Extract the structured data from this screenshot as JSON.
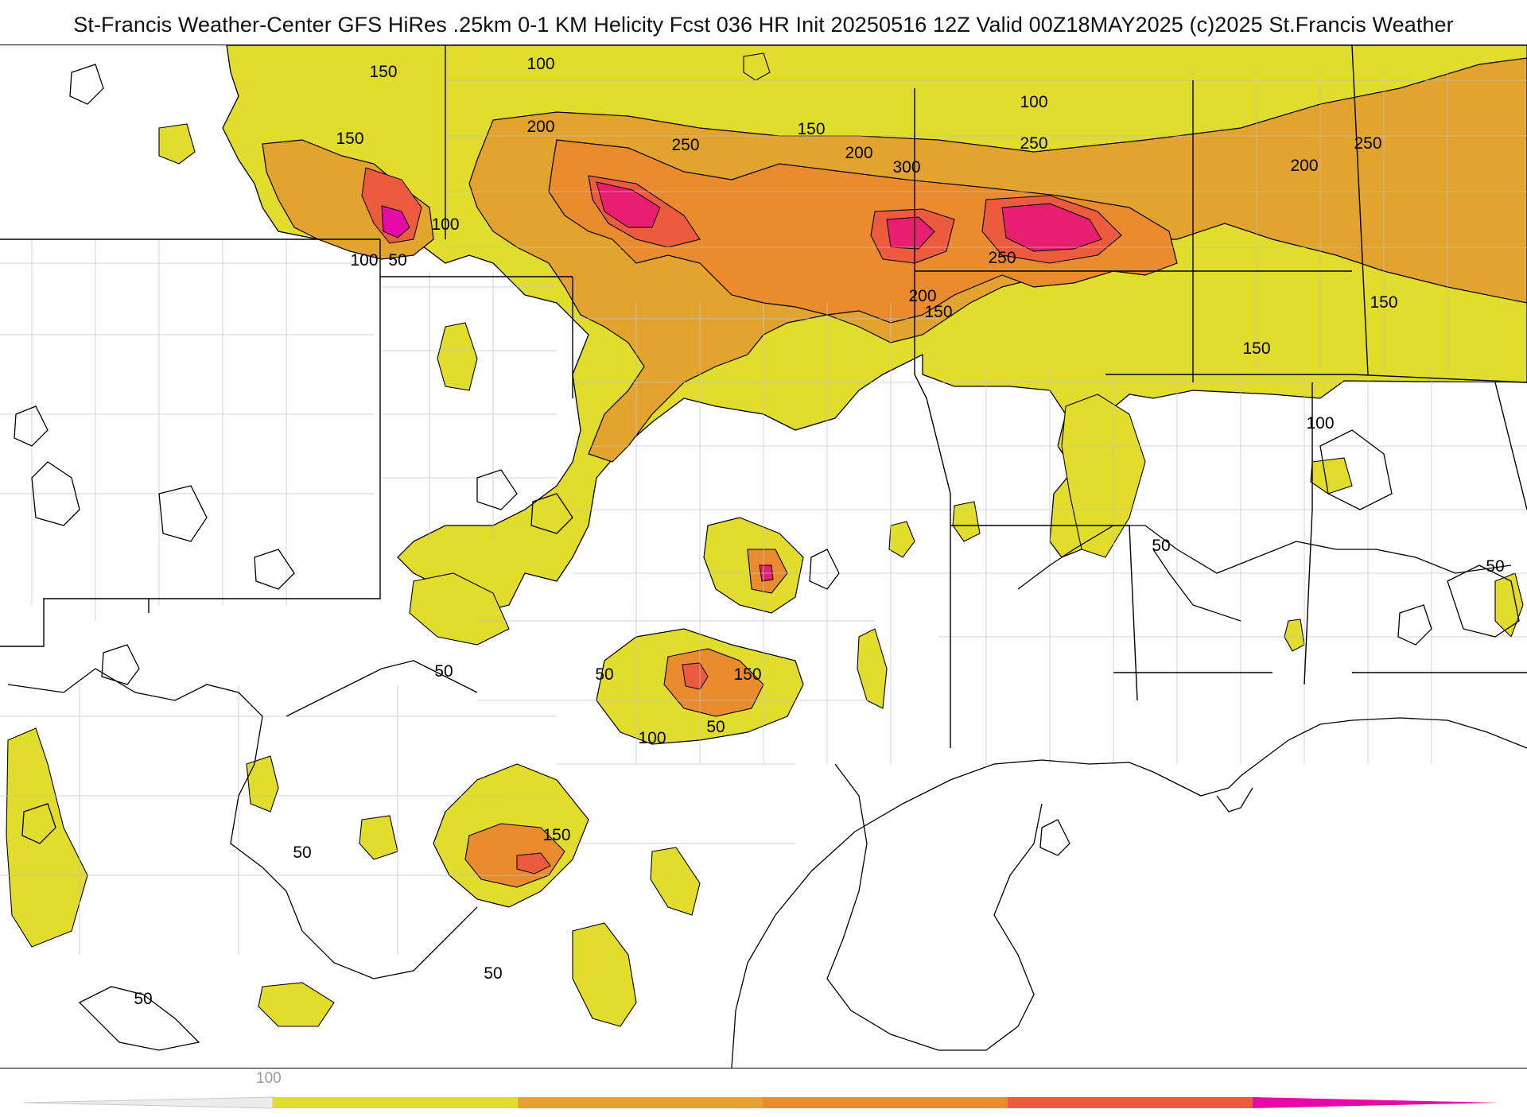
{
  "header": {
    "title": "St-Francis Weather-Center GFS HiRes .25km 0-1 KM Helicity Fcst 036 HR Init 20250516 12Z  Valid 00Z18MAY2025    (c)2025 St.Francis Weather"
  },
  "colors": {
    "band_100_150": "#e2dd2c",
    "band_150_200": "#e3a32f",
    "band_200_250": "#ea8c2d",
    "band_250_300": "#ed5b3e",
    "band_300_plus": "#e81f70",
    "max": "#e60aa8",
    "contour": "#000000",
    "county_border": "#bdbdbd",
    "background": "#ffffff"
  },
  "contour_labels": [
    {
      "id": "c1",
      "value": "150"
    },
    {
      "id": "c2",
      "value": "100"
    },
    {
      "id": "c3",
      "value": "150"
    },
    {
      "id": "c4",
      "value": "100"
    },
    {
      "id": "c5",
      "value": "100"
    },
    {
      "id": "c6",
      "value": "50"
    },
    {
      "id": "c7",
      "value": "200"
    },
    {
      "id": "c8",
      "value": "250"
    },
    {
      "id": "c9",
      "value": "150"
    },
    {
      "id": "c10",
      "value": "200"
    },
    {
      "id": "c11",
      "value": "300"
    },
    {
      "id": "c12",
      "value": "100"
    },
    {
      "id": "c13",
      "value": "250"
    },
    {
      "id": "c14",
      "value": "200"
    },
    {
      "id": "c15",
      "value": "250"
    },
    {
      "id": "c16",
      "value": "250"
    },
    {
      "id": "c17",
      "value": "200"
    },
    {
      "id": "c18",
      "value": "150"
    },
    {
      "id": "c19",
      "value": "150"
    },
    {
      "id": "c20",
      "value": "150"
    },
    {
      "id": "c21",
      "value": "100"
    },
    {
      "id": "c22",
      "value": "50"
    },
    {
      "id": "c23",
      "value": "50"
    },
    {
      "id": "c24",
      "value": "50"
    },
    {
      "id": "c25",
      "value": "150"
    },
    {
      "id": "c26",
      "value": "50"
    },
    {
      "id": "c27",
      "value": "100"
    },
    {
      "id": "c28",
      "value": "50"
    },
    {
      "id": "c29",
      "value": "150"
    },
    {
      "id": "c30",
      "value": "50"
    },
    {
      "id": "c31",
      "value": "50"
    },
    {
      "id": "c32",
      "value": "50"
    }
  ],
  "legend": {
    "tick_label": "100",
    "segments": [
      {
        "range": "<100",
        "color": "#ececec"
      },
      {
        "range": "100-150",
        "color": "#e2dd2c"
      },
      {
        "range": "150-200",
        "color": "#e3a32f"
      },
      {
        "range": "200-250",
        "color": "#ea8c2d"
      },
      {
        "range": "250-300",
        "color": "#ed5b3e"
      },
      {
        "range": "300+",
        "color": "#e60aa8"
      }
    ]
  }
}
